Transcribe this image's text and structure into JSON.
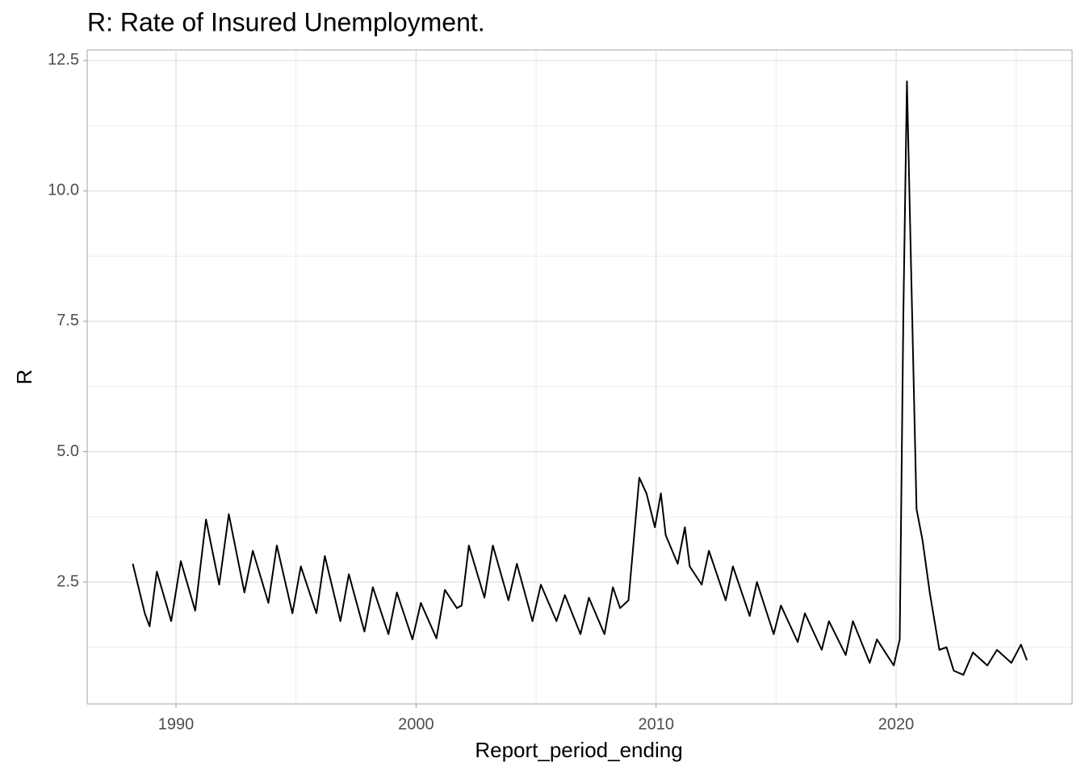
{
  "chart_data": {
    "type": "line",
    "title": "R: Rate of Insured Unemployment.",
    "xlabel": "Report_period_ending",
    "ylabel": "R",
    "x": [
      1988.2,
      1988.7,
      1988.9,
      1989.2,
      1989.8,
      1990.2,
      1990.8,
      1991.25,
      1991.8,
      1992.2,
      1992.85,
      1993.2,
      1993.85,
      1994.2,
      1994.85,
      1995.2,
      1995.85,
      1996.2,
      1996.85,
      1997.2,
      1997.85,
      1998.2,
      1998.85,
      1999.2,
      1999.85,
      2000.2,
      2000.85,
      2001.2,
      2001.7,
      2001.9,
      2002.2,
      2002.85,
      2003.2,
      2003.85,
      2004.2,
      2004.85,
      2005.2,
      2005.85,
      2006.2,
      2006.85,
      2007.2,
      2007.85,
      2008.2,
      2008.5,
      2008.85,
      2009.3,
      2009.6,
      2009.95,
      2010.2,
      2010.4,
      2010.9,
      2011.2,
      2011.4,
      2011.9,
      2012.2,
      2012.9,
      2013.2,
      2013.9,
      2014.2,
      2014.9,
      2015.2,
      2015.9,
      2016.2,
      2016.9,
      2017.2,
      2017.9,
      2018.2,
      2018.9,
      2019.2,
      2019.9,
      2020.15,
      2020.3,
      2020.45,
      2020.6,
      2020.85,
      2021.1,
      2021.4,
      2021.8,
      2022.1,
      2022.4,
      2022.8,
      2023.2,
      2023.8,
      2024.2,
      2024.8,
      2025.2,
      2025.45
    ],
    "series": [
      {
        "name": "R",
        "color": "#000000",
        "values": [
          2.85,
          1.9,
          1.65,
          2.7,
          1.75,
          2.9,
          1.95,
          3.7,
          2.45,
          3.8,
          2.3,
          3.1,
          2.1,
          3.2,
          1.9,
          2.8,
          1.9,
          3.0,
          1.75,
          2.65,
          1.55,
          2.4,
          1.5,
          2.3,
          1.4,
          2.1,
          1.42,
          2.35,
          2.0,
          2.05,
          3.2,
          2.2,
          3.2,
          2.15,
          2.85,
          1.75,
          2.45,
          1.75,
          2.25,
          1.5,
          2.2,
          1.5,
          2.4,
          2.0,
          2.15,
          4.5,
          4.2,
          3.55,
          4.2,
          3.4,
          2.85,
          3.55,
          2.8,
          2.45,
          3.1,
          2.15,
          2.8,
          1.85,
          2.5,
          1.5,
          2.05,
          1.35,
          1.9,
          1.2,
          1.75,
          1.1,
          1.75,
          0.95,
          1.4,
          0.9,
          1.4,
          7.6,
          12.1,
          9.0,
          3.9,
          3.3,
          2.3,
          1.2,
          1.25,
          0.8,
          0.72,
          1.15,
          0.9,
          1.2,
          0.95,
          1.3,
          1.0
        ]
      }
    ],
    "xlim": [
      1986.3,
      2027.33
    ],
    "xticks": [
      1990,
      2000,
      2010,
      2020
    ],
    "x_minor_ticks": [
      1995,
      2005,
      2015,
      2025
    ],
    "ylim": [
      0.163,
      12.7
    ],
    "yticks": [
      2.5,
      5.0,
      7.5,
      10.0,
      12.5
    ],
    "y_minor_ticks": [
      1.25,
      3.75,
      6.25,
      8.75,
      11.25
    ],
    "grid": true
  }
}
